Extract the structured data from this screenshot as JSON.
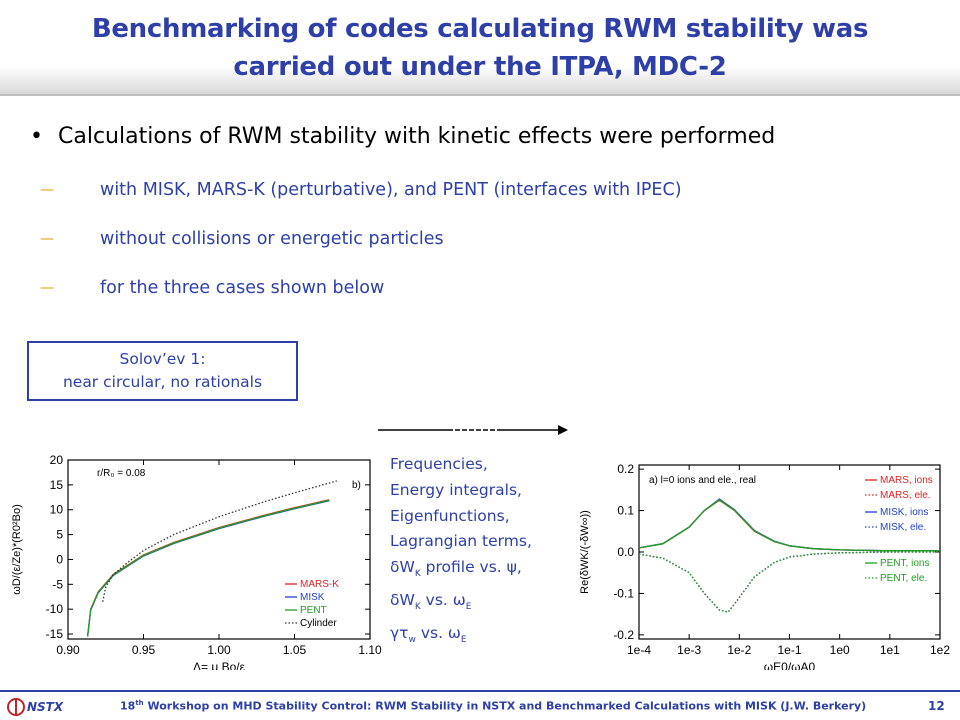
{
  "slide": {
    "title_line1": "Benchmarking of codes calculating RWM stability was",
    "title_line2": "carried out under the ITPA, MDC-2",
    "bullet": "Calculations of RWM stability with kinetic effects were performed",
    "subbullets": [
      "with MISK, MARS-K (perturbative), and PENT (interfaces with IPEC)",
      "without collisions or energetic particles",
      "for the three cases shown below"
    ],
    "case_box": {
      "line1": "Solov’ev 1:",
      "line2": "near circular, no rationals"
    },
    "frequencies_list": {
      "l1": "Frequencies,",
      "l2": "Energy integrals,",
      "l3": "Eigenfunctions,",
      "l4": "Lagrangian terms,",
      "l5a": "δW",
      "l5sub": "K",
      "l5b": " profile vs. ψ,",
      "l6a": "δW",
      "l6sub": "K",
      "l6b": " vs. ω",
      "l6sub2": "E",
      "l7a": "γτ",
      "l7sub": "w",
      "l7b": " vs. ω",
      "l7sub2": "E"
    },
    "footer": {
      "logo_text": "NSTX",
      "text_pre": "18",
      "text_sup": "th",
      "text_post": " Workshop on MHD Stability Control: RWM Stability in NSTX and Benchmarked Calculations with MISK (J.W. Berkery)",
      "page": "12"
    },
    "colors": {
      "title": "#2e3fa8",
      "accent": "#d9a000"
    }
  },
  "chart_data": [
    {
      "type": "line",
      "title": "",
      "annotation_left": "r/R₀ = 0.08",
      "annotation_right": "b)",
      "ylabel": "ωD/(ε/Ze)*(R0²Bo)",
      "xlabel": "Λ= μ Bo/ε",
      "xlim": [
        0.9,
        1.1
      ],
      "ylim": [
        -16,
        20
      ],
      "xticks": [
        "0.90",
        "0.95",
        "1.00",
        "1.05",
        "1.10"
      ],
      "yticks": [
        "20",
        "15",
        "10",
        "5",
        "0",
        "-5",
        "-10",
        "-15"
      ],
      "legend_position": "bottom-right",
      "series": [
        {
          "name": "MARS-K",
          "color": "#e02020",
          "style": "solid",
          "x": [
            0.913,
            0.915,
            0.92,
            0.93,
            0.95,
            0.97,
            1.0,
            1.03,
            1.05,
            1.073
          ],
          "y": [
            -15.5,
            -10,
            -6.5,
            -3.0,
            0.9,
            3.4,
            6.4,
            8.9,
            10.4,
            12.0
          ]
        },
        {
          "name": "MISK",
          "color": "#2040d0",
          "style": "solid",
          "x": [
            0.913,
            0.915,
            0.92,
            0.93,
            0.95,
            0.97,
            1.0,
            1.03,
            1.05,
            1.073
          ],
          "y": [
            -15.5,
            -10.2,
            -6.7,
            -3.2,
            0.7,
            3.2,
            6.2,
            8.7,
            10.2,
            11.8
          ]
        },
        {
          "name": "PENT",
          "color": "#20a020",
          "style": "solid",
          "x": [
            0.913,
            0.915,
            0.92,
            0.93,
            0.95,
            0.97,
            1.0,
            1.03,
            1.05,
            1.073
          ],
          "y": [
            -15.5,
            -10.1,
            -6.6,
            -3.1,
            0.8,
            3.3,
            6.3,
            8.8,
            10.3,
            11.9
          ]
        },
        {
          "name": "Cylinder",
          "color": "#333333",
          "style": "dotted",
          "x": [
            0.923,
            0.925,
            0.93,
            0.94,
            0.95,
            0.97,
            1.0,
            1.03,
            1.05,
            1.078
          ],
          "y": [
            -8.5,
            -5.5,
            -3.0,
            -0.5,
            1.8,
            5.0,
            8.6,
            11.6,
            13.4,
            15.8
          ]
        }
      ]
    },
    {
      "type": "line",
      "title": "",
      "annotation_left": "a) l=0 ions and ele., real",
      "ylabel": "Re(δWK/(-δW∞))",
      "xlabel": "ωE0/ωA0",
      "xscale": "log",
      "xlim": [
        0.0001,
        100
      ],
      "ylim": [
        -0.21,
        0.21
      ],
      "xticks": [
        "1e-4",
        "1e-3",
        "1e-2",
        "1e-1",
        "1e0",
        "1e1",
        "1e2"
      ],
      "yticks": [
        "0.2",
        "0.1",
        "0.0",
        "-0.1",
        "-0.2"
      ],
      "legend_position": "right",
      "series": [
        {
          "name": "MARS, ions",
          "color": "#e02020",
          "style": "solid",
          "x": [
            0.0001,
            0.0003,
            0.001,
            0.002,
            0.004,
            0.008,
            0.02,
            0.05,
            0.1,
            0.3,
            1,
            10,
            100
          ],
          "y": [
            0.01,
            0.02,
            0.06,
            0.1,
            0.125,
            0.1,
            0.05,
            0.025,
            0.015,
            0.008,
            0.005,
            0.003,
            0.003
          ]
        },
        {
          "name": "MARS, ele.",
          "color": "#e02020",
          "style": "dotted",
          "x": [
            0.0001,
            0.0003,
            0.001,
            0.002,
            0.004,
            0.006,
            0.01,
            0.02,
            0.05,
            0.1,
            0.3,
            1,
            10,
            100
          ],
          "y": [
            -0.005,
            -0.015,
            -0.05,
            -0.1,
            -0.14,
            -0.145,
            -0.11,
            -0.06,
            -0.025,
            -0.012,
            -0.005,
            -0.002,
            0.0,
            0.0
          ]
        },
        {
          "name": "MISK, ions",
          "color": "#2040d0",
          "style": "solid",
          "x": [
            0.0001,
            0.0003,
            0.001,
            0.002,
            0.004,
            0.008,
            0.02,
            0.05,
            0.1,
            0.3,
            1,
            10,
            100
          ],
          "y": [
            0.01,
            0.02,
            0.06,
            0.1,
            0.128,
            0.102,
            0.052,
            0.026,
            0.015,
            0.008,
            0.005,
            0.003,
            0.003
          ]
        },
        {
          "name": "MISK, ele.",
          "color": "#2040d0",
          "style": "dotted",
          "x": [
            0.0001,
            0.0003,
            0.001,
            0.002,
            0.004,
            0.006,
            0.01,
            0.02,
            0.05,
            0.1,
            0.3,
            1,
            10,
            100
          ],
          "y": [
            -0.005,
            -0.015,
            -0.05,
            -0.1,
            -0.14,
            -0.145,
            -0.11,
            -0.06,
            -0.025,
            -0.012,
            -0.005,
            -0.002,
            0.0,
            0.0
          ]
        },
        {
          "name": "PENT, ions",
          "color": "#20a020",
          "style": "solid",
          "x": [
            0.0001,
            0.0003,
            0.001,
            0.002,
            0.004,
            0.008,
            0.02,
            0.05,
            0.1,
            0.3,
            1,
            10,
            100
          ],
          "y": [
            0.01,
            0.02,
            0.06,
            0.1,
            0.126,
            0.101,
            0.051,
            0.025,
            0.015,
            0.008,
            0.005,
            0.003,
            0.003
          ]
        },
        {
          "name": "PENT, ele.",
          "color": "#20a020",
          "style": "dotted",
          "x": [
            0.0001,
            0.0003,
            0.001,
            0.002,
            0.004,
            0.006,
            0.01,
            0.02,
            0.05,
            0.1,
            0.3,
            1,
            10,
            100
          ],
          "y": [
            -0.005,
            -0.015,
            -0.05,
            -0.1,
            -0.14,
            -0.145,
            -0.11,
            -0.06,
            -0.025,
            -0.012,
            -0.005,
            -0.002,
            0.0,
            0.0
          ]
        }
      ]
    }
  ]
}
